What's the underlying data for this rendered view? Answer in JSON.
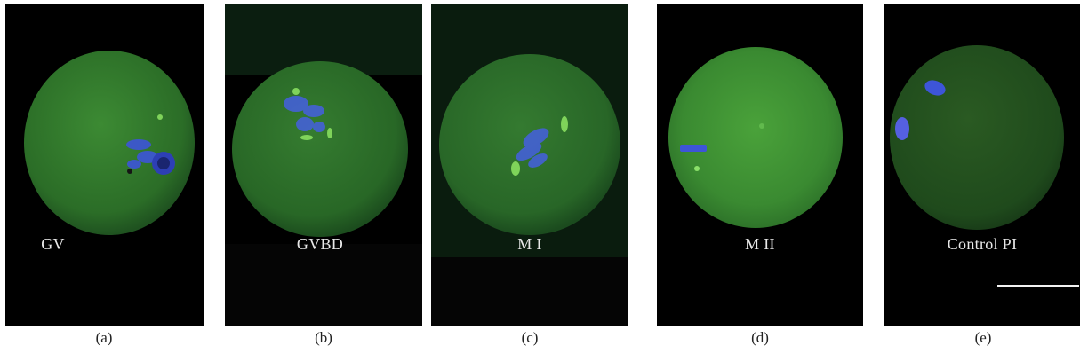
{
  "panels": [
    {
      "id": "a",
      "stage": "GV",
      "caption": "(a)"
    },
    {
      "id": "b",
      "stage": "GVBD",
      "caption": "(b)"
    },
    {
      "id": "c",
      "stage": "M I",
      "caption": "(c)"
    },
    {
      "id": "d",
      "stage": "M II",
      "caption": "(d)"
    },
    {
      "id": "e",
      "stage": "Control PI",
      "caption": "(e)"
    }
  ],
  "colors": {
    "background": "#000000",
    "oocyte_green": "#2f7a2c",
    "chromatin_blue": "#3d55d8",
    "spindle_green": "#7fd35a"
  }
}
